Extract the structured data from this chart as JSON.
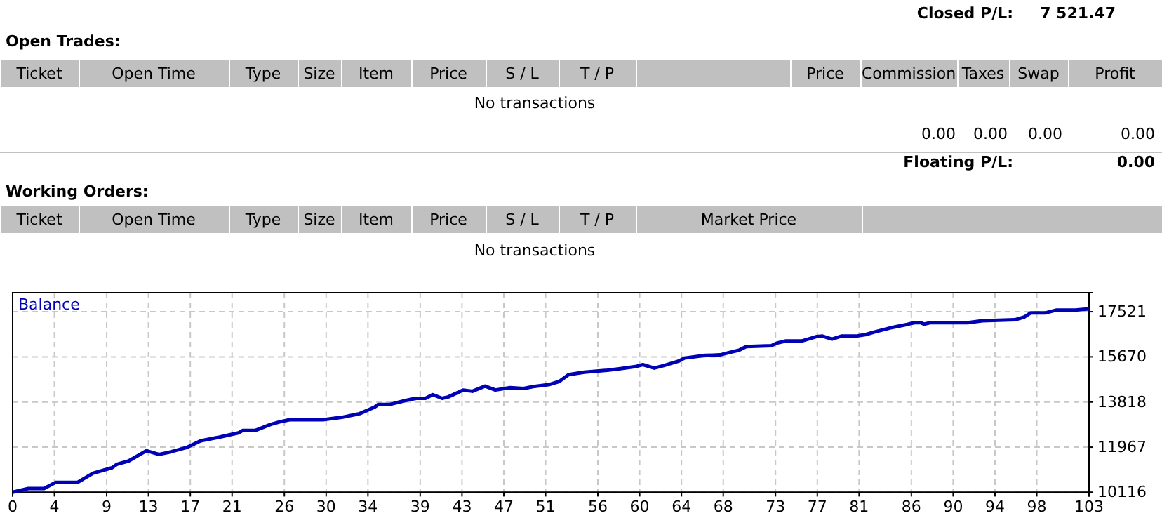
{
  "chart_data": [
    {
      "type": "other",
      "annotations": [
        "Closed P/L:",
        "7 521.47",
        "Open Trades:",
        "Ticket",
        "Open Time",
        "Type",
        "Size",
        "Item",
        "Price",
        "S / L",
        "T / P",
        "Price",
        "Commission",
        "Taxes",
        "Swap",
        "Profit",
        "No transactions",
        "0.00",
        "0.00",
        "0.00",
        "0.00",
        "Floating P/L:",
        "0.00",
        "Working Orders:",
        "Ticket",
        "Open Time",
        "Type",
        "Size",
        "Item",
        "Price",
        "S / L",
        "T / P",
        "Market Price",
        "No transactions"
      ]
    },
    {
      "type": "line",
      "xlim": [
        0,
        103
      ],
      "ylim": [
        10116,
        18300
      ],
      "xticks": [
        0,
        4,
        9,
        13,
        17,
        21,
        26,
        30,
        34,
        39,
        43,
        47,
        51,
        56,
        60,
        64,
        68,
        73,
        77,
        81,
        86,
        90,
        94,
        98,
        103
      ],
      "yticks": [
        10116,
        11967,
        13818,
        15670,
        17521
      ],
      "grid": true,
      "legend": "top left",
      "line_style": "solid",
      "marker": "none",
      "series": [
        {
          "name": "Balance",
          "color": "#0000b4",
          "x": [
            0,
            1.5,
            3,
            4.1,
            6.2,
            7.7,
            9.5,
            10,
            11.1,
            12.8,
            14,
            14.9,
            16.7,
            18,
            19.8,
            21.6,
            22,
            23.2,
            24.7,
            25.6,
            26.5,
            29.7,
            31.5,
            33.2,
            34.6,
            35,
            36.1,
            37.7,
            38.6,
            39.5,
            40.2,
            41.1,
            41.7,
            43.1,
            44,
            45.2,
            46.2,
            47.6,
            48.9,
            49.8,
            51.4,
            52.3,
            53.2,
            54.7,
            56.9,
            57.9,
            59.6,
            60.3,
            61.4,
            62.3,
            63.7,
            64.3,
            66.3,
            67.7,
            68.6,
            69.5,
            70.2,
            72.6,
            73.1,
            74,
            75.5,
            76.9,
            77.5,
            78.4,
            79.3,
            80.7,
            81.6,
            82.5,
            84,
            85.6,
            86.3,
            86.9,
            87.2,
            87.8,
            91.4,
            92.8,
            95.9,
            96.8,
            97.4,
            98.8,
            99.9,
            101.7,
            103
          ],
          "values": [
            10120,
            10270,
            10270,
            10520,
            10520,
            10900,
            11120,
            11270,
            11400,
            11820,
            11670,
            11750,
            11960,
            12230,
            12380,
            12550,
            12650,
            12650,
            12900,
            13010,
            13090,
            13090,
            13190,
            13340,
            13600,
            13720,
            13720,
            13890,
            13970,
            13970,
            14120,
            13970,
            14030,
            14310,
            14260,
            14470,
            14310,
            14410,
            14370,
            14450,
            14540,
            14660,
            14940,
            15040,
            15120,
            15170,
            15270,
            15350,
            15210,
            15310,
            15490,
            15620,
            15730,
            15750,
            15850,
            15940,
            16090,
            16130,
            16230,
            16320,
            16320,
            16500,
            16520,
            16400,
            16520,
            16520,
            16580,
            16690,
            16860,
            17000,
            17070,
            17070,
            17010,
            17070,
            17070,
            17150,
            17190,
            17300,
            17470,
            17470,
            17590,
            17590,
            17640
          ]
        }
      ]
    }
  ]
}
